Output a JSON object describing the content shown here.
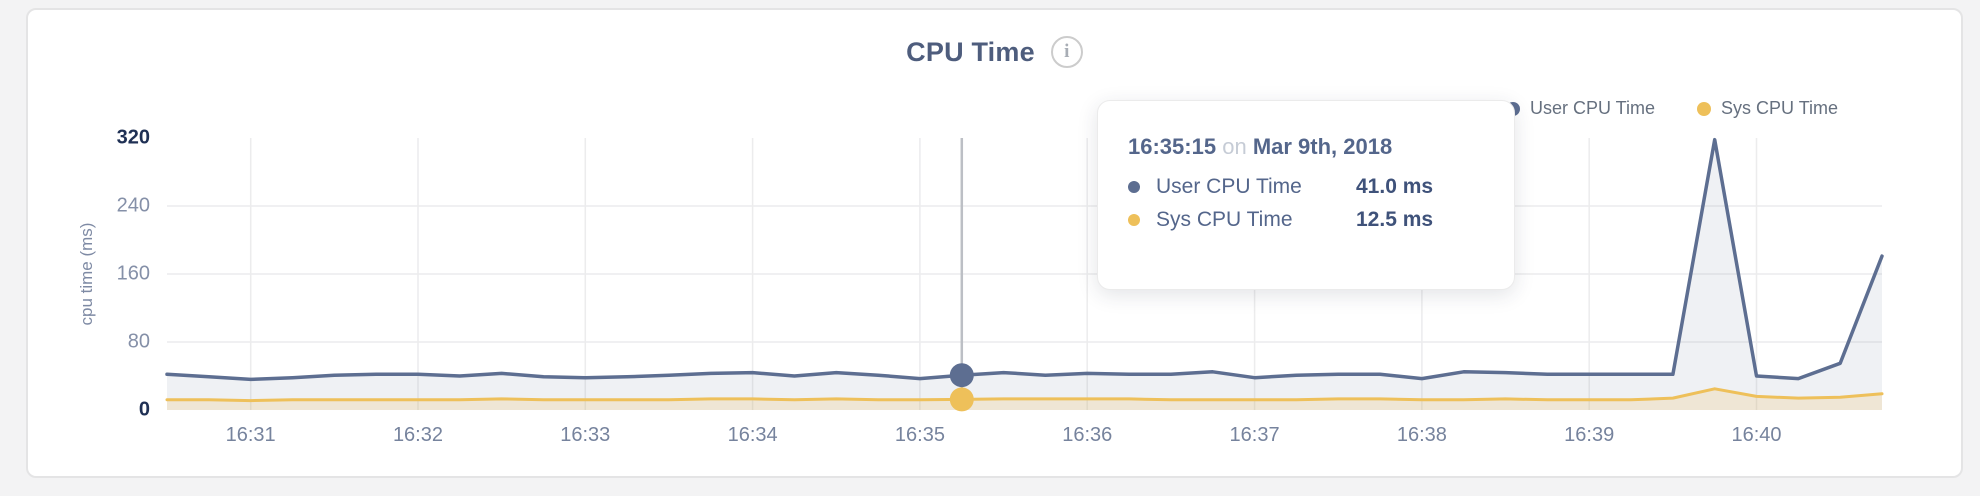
{
  "header": {
    "title": "CPU Time",
    "info_glyph": "i"
  },
  "legend": {
    "items": [
      {
        "label": "User CPU Time",
        "color": "#5d6e91"
      },
      {
        "label": "Sys CPU Time",
        "color": "#eec05a"
      }
    ]
  },
  "tooltip": {
    "time": "16:35:15",
    "conjunction": "on",
    "date": "Mar 9th, 2018",
    "rows": [
      {
        "label": "User CPU Time",
        "value": "41.0 ms",
        "color": "#5d6e91"
      },
      {
        "label": "Sys CPU Time",
        "value": "12.5 ms",
        "color": "#eec05a"
      }
    ]
  },
  "chart_data": {
    "type": "line",
    "title": "CPU Time",
    "xlabel": "",
    "ylabel": "cpu time (ms)",
    "ylim": [
      0,
      320
    ],
    "yticks": [
      0,
      80,
      160,
      240,
      320
    ],
    "grid": true,
    "legend_position": "top-right",
    "x_range": [
      "16:30:30",
      "16:40:45"
    ],
    "xticks": [
      "16:31",
      "16:32",
      "16:33",
      "16:34",
      "16:35",
      "16:36",
      "16:37",
      "16:38",
      "16:39",
      "16:40"
    ],
    "x": [
      "16:30:30",
      "16:30:45",
      "16:31:00",
      "16:31:15",
      "16:31:30",
      "16:31:45",
      "16:32:00",
      "16:32:15",
      "16:32:30",
      "16:32:45",
      "16:33:00",
      "16:33:15",
      "16:33:30",
      "16:33:45",
      "16:34:00",
      "16:34:15",
      "16:34:30",
      "16:34:45",
      "16:35:00",
      "16:35:15",
      "16:35:30",
      "16:35:45",
      "16:36:00",
      "16:36:15",
      "16:36:30",
      "16:36:45",
      "16:37:00",
      "16:37:15",
      "16:37:30",
      "16:37:45",
      "16:38:00",
      "16:38:15",
      "16:38:30",
      "16:38:45",
      "16:39:00",
      "16:39:15",
      "16:39:30",
      "16:39:45",
      "16:40:00",
      "16:40:15",
      "16:40:30",
      "16:40:45"
    ],
    "series": [
      {
        "name": "User CPU Time",
        "color": "#5d6e91",
        "fill": "rgba(101,115,143,0.10)",
        "values": [
          42,
          39,
          36,
          38,
          41,
          42,
          42,
          40,
          43,
          39,
          38,
          39,
          41,
          43,
          44,
          40,
          44,
          41,
          37,
          41,
          44,
          41,
          43,
          42,
          42,
          45,
          38,
          41,
          42,
          42,
          37,
          45,
          44,
          42,
          42,
          42,
          42,
          318,
          40,
          37,
          55,
          181
        ]
      },
      {
        "name": "Sys CPU Time",
        "color": "#eec05a",
        "fill": "rgba(238,192,90,0.20)",
        "values": [
          12,
          12,
          11,
          12,
          12,
          12,
          12,
          12,
          13,
          12,
          12,
          12,
          12,
          13,
          13,
          12,
          13,
          12,
          12,
          12.5,
          13,
          13,
          13,
          13,
          12,
          12,
          12,
          12,
          13,
          13,
          12,
          12,
          13,
          12,
          12,
          12,
          14,
          25,
          16,
          14,
          15,
          19
        ]
      }
    ],
    "hover": {
      "index": 19,
      "time": "16:35:15",
      "crosshair_color": "#bcbfc5"
    },
    "gridline_color": "#ececed"
  }
}
